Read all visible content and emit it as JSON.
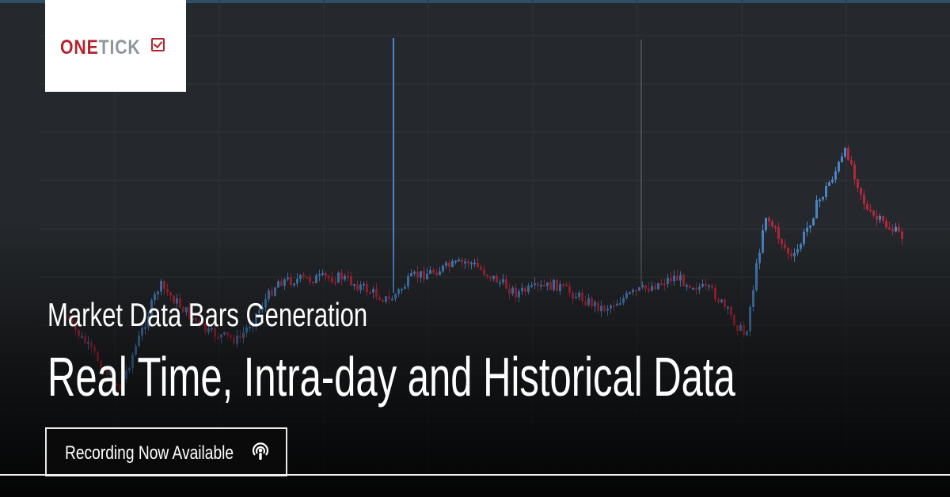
{
  "logo": {
    "part1": "ONE",
    "part2": "TICK",
    "colors": {
      "one": "#b5222c",
      "tick": "#8e9699"
    }
  },
  "headline": {
    "subtitle": "Market Data Bars Generation",
    "title": "Real Time, Intra-day and Historical Data"
  },
  "cta": {
    "label": "Recording Now Available",
    "icon": "podcast-icon"
  },
  "background": {
    "colors": {
      "panel": "#25282c",
      "up": "#4a86c5",
      "down": "#b0283a"
    }
  }
}
